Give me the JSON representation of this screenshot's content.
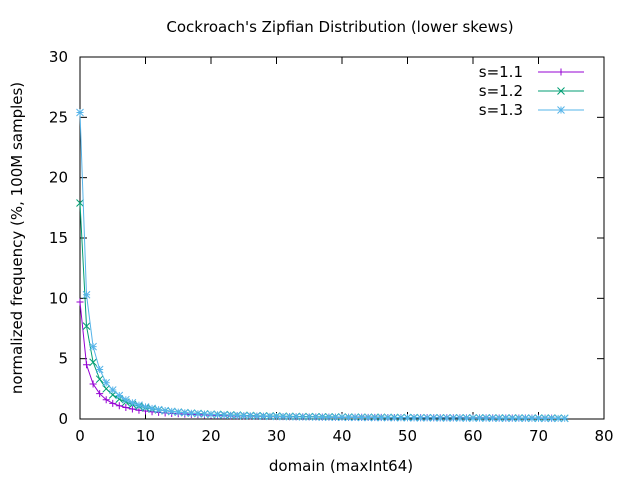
{
  "chart_data": {
    "type": "line",
    "title": "Cockroach's Zipfian Distribution (lower skews)",
    "xlabel": "domain (maxInt64)",
    "ylabel": "normalized frequency (%, 100M samples)",
    "xlim": [
      0,
      80
    ],
    "ylim": [
      0,
      30
    ],
    "xticks": [
      0,
      10,
      20,
      30,
      40,
      50,
      60,
      70,
      80
    ],
    "yticks": [
      0,
      5,
      10,
      15,
      20,
      25,
      30
    ],
    "grid": false,
    "legend": "top-right",
    "series": [
      {
        "name": "s=1.1",
        "color": "#9400d3",
        "marker": "plus",
        "x": [
          0,
          1,
          2,
          3,
          4,
          5,
          6,
          7,
          8,
          9,
          10,
          11,
          12,
          13,
          14,
          15,
          16,
          17,
          18,
          19,
          20,
          21,
          22,
          23,
          24,
          25,
          26,
          27,
          28,
          29,
          30,
          31,
          32,
          33,
          34,
          35,
          36,
          37,
          38,
          39,
          40,
          41,
          42,
          43,
          44,
          45,
          46,
          47,
          48,
          49,
          50,
          51,
          52,
          53,
          54,
          55,
          56,
          57,
          58,
          59,
          60,
          61,
          62,
          63,
          64,
          65,
          66,
          67,
          68,
          69,
          70,
          71,
          72
        ],
        "y": [
          9.7,
          4.5,
          2.9,
          2.1,
          1.6,
          1.3,
          1.1,
          0.95,
          0.83,
          0.73,
          0.66,
          0.6,
          0.55,
          0.5,
          0.46,
          0.43,
          0.4,
          0.38,
          0.36,
          0.34,
          0.32,
          0.3,
          0.29,
          0.27,
          0.26,
          0.25,
          0.24,
          0.23,
          0.22,
          0.21,
          0.2,
          0.2,
          0.19,
          0.18,
          0.18,
          0.17,
          0.17,
          0.16,
          0.16,
          0.15,
          0.15,
          0.14,
          0.14,
          0.14,
          0.13,
          0.13,
          0.13,
          0.12,
          0.12,
          0.12,
          0.11,
          0.11,
          0.11,
          0.11,
          0.1,
          0.1,
          0.1,
          0.1,
          0.1,
          0.09,
          0.09,
          0.09,
          0.09,
          0.09,
          0.08,
          0.08,
          0.08,
          0.08,
          0.08,
          0.08,
          0.08,
          0.07,
          0.07
        ]
      },
      {
        "name": "s=1.2",
        "color": "#009e73",
        "marker": "cross",
        "x": [
          0,
          1,
          2,
          3,
          4,
          5,
          6,
          7,
          8,
          9,
          10,
          11,
          12,
          13,
          14,
          15,
          16,
          17,
          18,
          19,
          20,
          21,
          22,
          23,
          24,
          25,
          26,
          27,
          28,
          29,
          30,
          31,
          32,
          33,
          34,
          35,
          36,
          37,
          38,
          39,
          40,
          41,
          42,
          43,
          44,
          45,
          46,
          47,
          48,
          49,
          50,
          51,
          52,
          53,
          54,
          55,
          56,
          57,
          58,
          59,
          60,
          61,
          62,
          63,
          64,
          65,
          66,
          67,
          68,
          69,
          70,
          71,
          72,
          73,
          74
        ],
        "y": [
          17.9,
          7.7,
          4.7,
          3.3,
          2.5,
          2.0,
          1.65,
          1.4,
          1.2,
          1.05,
          0.93,
          0.83,
          0.75,
          0.68,
          0.62,
          0.57,
          0.53,
          0.49,
          0.46,
          0.43,
          0.4,
          0.38,
          0.36,
          0.34,
          0.32,
          0.3,
          0.29,
          0.27,
          0.26,
          0.25,
          0.24,
          0.23,
          0.22,
          0.21,
          0.2,
          0.2,
          0.19,
          0.18,
          0.18,
          0.17,
          0.16,
          0.16,
          0.15,
          0.15,
          0.14,
          0.14,
          0.14,
          0.13,
          0.13,
          0.12,
          0.12,
          0.12,
          0.11,
          0.11,
          0.11,
          0.1,
          0.1,
          0.1,
          0.1,
          0.09,
          0.09,
          0.09,
          0.09,
          0.08,
          0.08,
          0.08,
          0.08,
          0.08,
          0.07,
          0.07,
          0.07,
          0.07,
          0.07,
          0.07,
          0.06
        ]
      },
      {
        "name": "s=1.3",
        "color": "#56b4e9",
        "marker": "star",
        "x": [
          0,
          1,
          2,
          3,
          4,
          5,
          6,
          7,
          8,
          9,
          10,
          11,
          12,
          13,
          14,
          15,
          16,
          17,
          18,
          19,
          20,
          21,
          22,
          23,
          24,
          25,
          26,
          27,
          28,
          29,
          30,
          31,
          32,
          33,
          34,
          35,
          36,
          37,
          38,
          39,
          40,
          41,
          42,
          43,
          44,
          45,
          46,
          47,
          48,
          49,
          50,
          51,
          52,
          53,
          54,
          55,
          56,
          57,
          58,
          59,
          60,
          61,
          62,
          63,
          64,
          65,
          66,
          67,
          68,
          69,
          70,
          71,
          72,
          73,
          74
        ],
        "y": [
          25.4,
          10.3,
          6.0,
          4.1,
          3.0,
          2.4,
          1.95,
          1.6,
          1.35,
          1.15,
          1.0,
          0.88,
          0.78,
          0.7,
          0.63,
          0.57,
          0.52,
          0.48,
          0.44,
          0.41,
          0.38,
          0.35,
          0.33,
          0.31,
          0.29,
          0.27,
          0.26,
          0.24,
          0.23,
          0.22,
          0.21,
          0.2,
          0.19,
          0.18,
          0.17,
          0.17,
          0.16,
          0.15,
          0.15,
          0.14,
          0.14,
          0.13,
          0.13,
          0.12,
          0.12,
          0.11,
          0.11,
          0.11,
          0.1,
          0.1,
          0.1,
          0.09,
          0.09,
          0.09,
          0.09,
          0.08,
          0.08,
          0.08,
          0.08,
          0.07,
          0.07,
          0.07,
          0.07,
          0.07,
          0.06,
          0.06,
          0.06,
          0.06,
          0.06,
          0.06,
          0.05,
          0.05,
          0.05,
          0.05,
          0.05
        ]
      }
    ]
  }
}
